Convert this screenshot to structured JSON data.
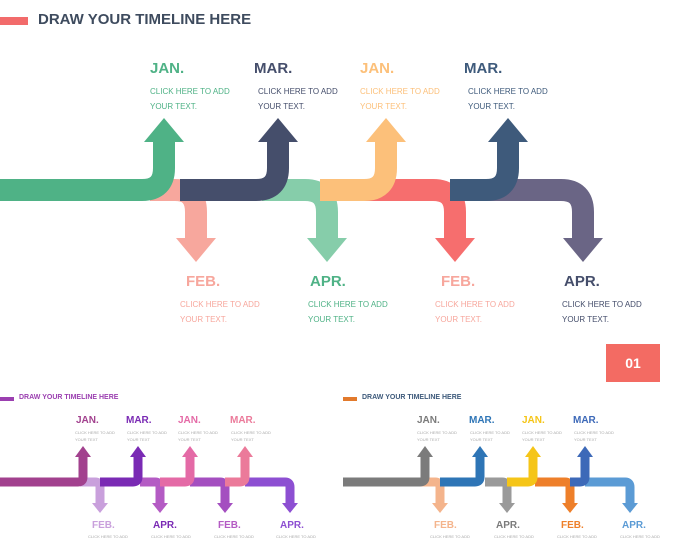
{
  "main": {
    "title": "DRAW YOUR TIMELINE HERE",
    "placeholder": "CLICK HERE TO ADD",
    "placeholder2": "YOUR TEXT.",
    "labels": [
      "JAN.",
      "MAR.",
      "JAN.",
      "MAR.",
      "FEB.",
      "APR.",
      "FEB.",
      "APR."
    ],
    "colors": {
      "green": "#4fb286",
      "dark_navy": "#454e6b",
      "peach": "#fcc07a",
      "steel_blue": "#3e5a7b",
      "pink": "#f7a79d",
      "mint": "#86cdaa",
      "coral": "#f66e6e",
      "slate_purple": "#6a6585"
    }
  },
  "badge": {
    "text": "01"
  },
  "left_panel": {
    "title": "DRAW YOUR TIMELINE HERE",
    "placeholder": "CLICK HERE TO ADD",
    "placeholder2": "YOUR TEXT",
    "labels": [
      "JAN.",
      "MAR.",
      "JAN.",
      "MAR.",
      "FEB.",
      "APR.",
      "FEB.",
      "APR."
    ],
    "accent": "#9b3fb0"
  },
  "right_panel": {
    "title": "DRAW YOUR TIMELINE HERE",
    "placeholder": "CLICK HERE TO ADD",
    "placeholder2": "YOUR TEXT",
    "labels": [
      "JAN.",
      "MAR.",
      "JAN.",
      "MAR.",
      "FEB.",
      "APR.",
      "FEB.",
      "APR."
    ],
    "accent": "#e27a2c"
  }
}
